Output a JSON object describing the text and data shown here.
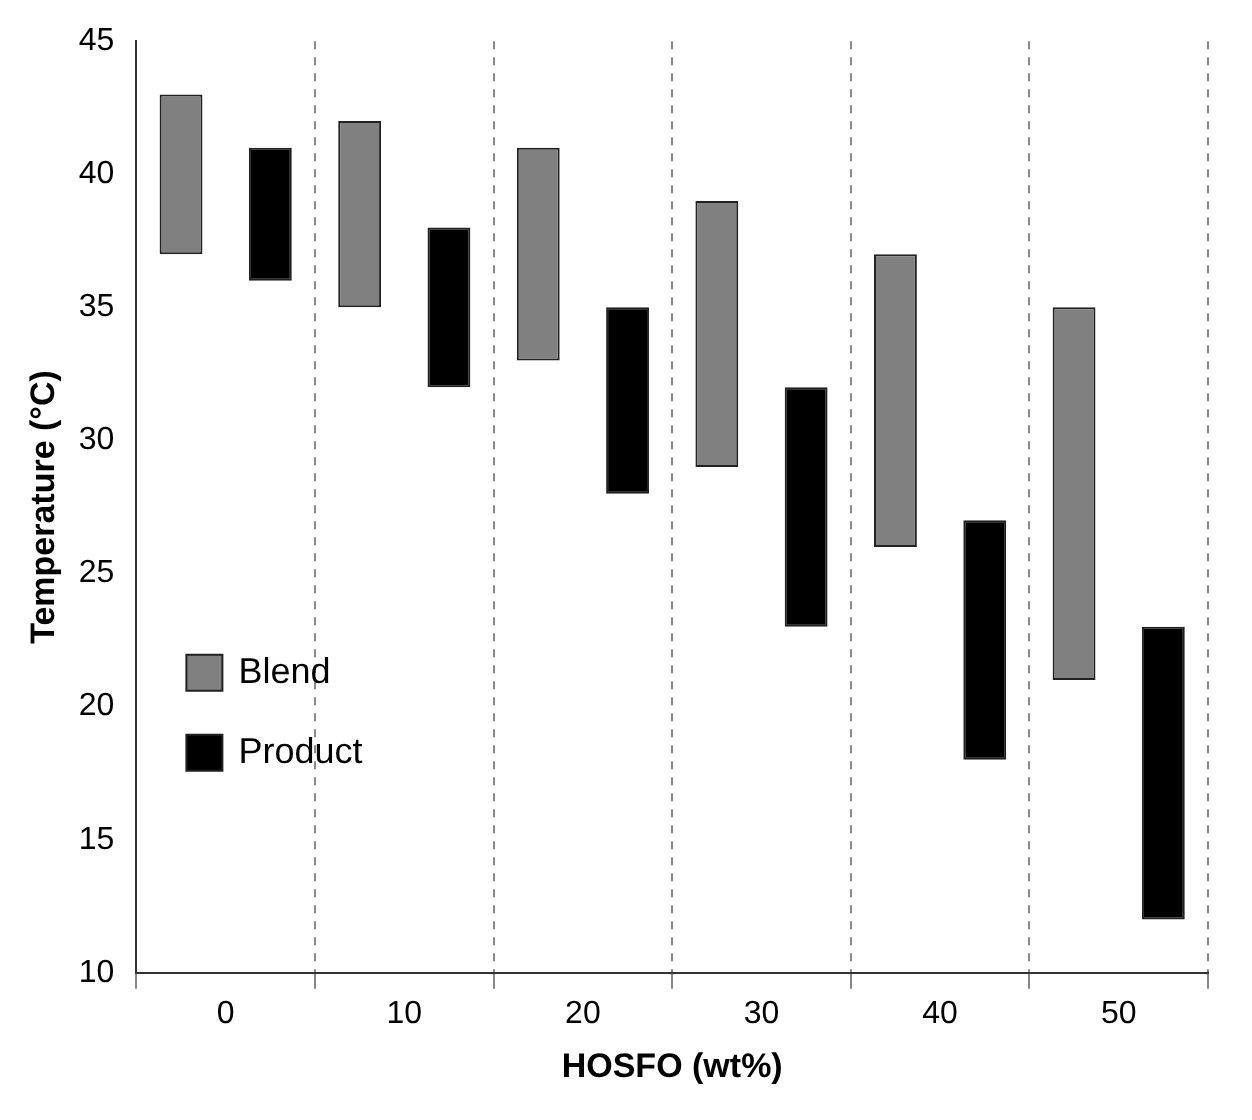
{
  "chart_data": {
    "type": "bar",
    "xlabel": "HOSFO (wt%)",
    "ylabel": "Temperature (°C)",
    "categories": [
      "0",
      "10",
      "20",
      "30",
      "40",
      "50"
    ],
    "series": [
      {
        "name": "Blend",
        "color": "#808080",
        "base": [
          37,
          35,
          33,
          29,
          26,
          21
        ],
        "values": [
          6,
          7,
          8,
          10,
          11,
          14
        ]
      },
      {
        "name": "Product",
        "color": "#000000",
        "base": [
          36,
          32,
          28,
          23,
          18,
          12
        ],
        "values": [
          5,
          6,
          7,
          9,
          9,
          11
        ]
      }
    ],
    "ylim": [
      10,
      45
    ],
    "yticks": [
      10,
      15,
      20,
      25,
      30,
      35,
      40,
      45
    ],
    "grid": "x",
    "legend": "bottom left"
  }
}
